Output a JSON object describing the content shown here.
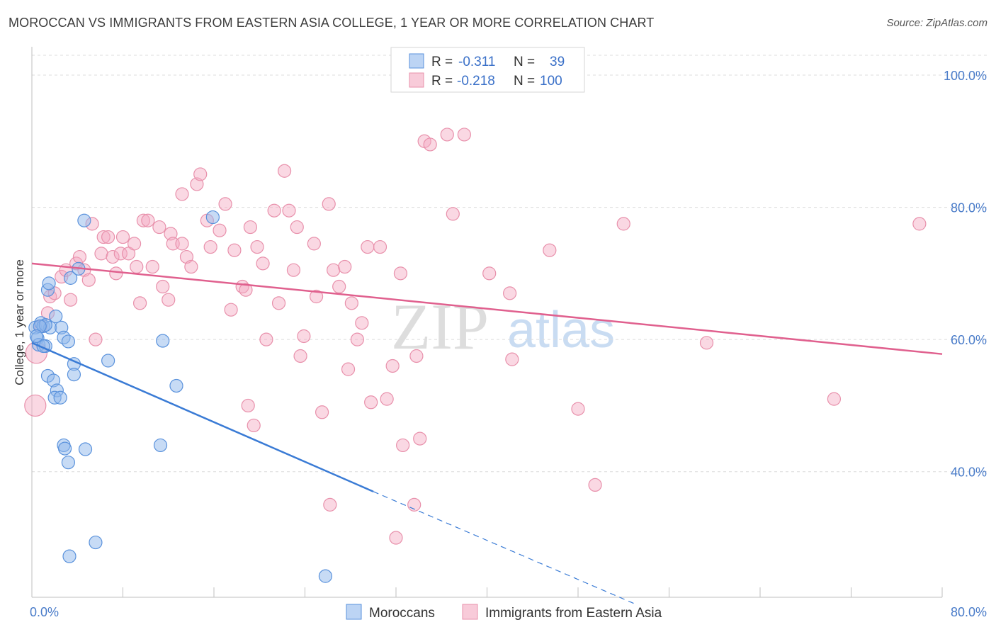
{
  "title": "MOROCCAN VS IMMIGRANTS FROM EASTERN ASIA COLLEGE, 1 YEAR OR MORE CORRELATION CHART",
  "source": "Source: ZipAtlas.com",
  "watermark": {
    "zip": "ZIP",
    "atlas": "atlas"
  },
  "legend_top": [
    {
      "r_label": "R =",
      "r_value": "-0.311",
      "n_label": "N =",
      "n_value": "39",
      "color": "#8fb8ec"
    },
    {
      "r_label": "R =",
      "r_value": "-0.218",
      "n_label": "N =",
      "n_value": "100",
      "color": "#f3a8c0"
    }
  ],
  "legend_bottom": [
    {
      "label": "Moroccans",
      "color": "#8fb8ec"
    },
    {
      "label": "Immigrants from Eastern Asia",
      "color": "#f3a8c0"
    }
  ],
  "chart_data": {
    "type": "scatter",
    "title": "MOROCCAN VS IMMIGRANTS FROM EASTERN ASIA COLLEGE, 1 YEAR OR MORE CORRELATION CHART",
    "xlabel": "",
    "ylabel": "College, 1 year or more",
    "xlim": [
      0,
      80
    ],
    "ylim": [
      21,
      103
    ],
    "x_ticks": [
      "0.0%",
      "80.0%"
    ],
    "y_ticks": [
      {
        "value": 100,
        "label": "100.0%"
      },
      {
        "value": 80,
        "label": "80.0%"
      },
      {
        "value": 60,
        "label": "60.0%"
      },
      {
        "value": 40,
        "label": "40.0%"
      }
    ],
    "grid": true,
    "legend_position": "top-center",
    "series": [
      {
        "name": "Moroccans",
        "color": "#8fb8ec",
        "stroke": "#5a92dc",
        "trend": {
          "x0": 0,
          "y0": 59.5,
          "x1": 30,
          "y1": 37.0,
          "dash_to_x": 53,
          "dash_to_y": 20.0,
          "color": "#3a7bd5"
        },
        "points": [
          {
            "x": 0.3,
            "y": 61.8
          },
          {
            "x": 0.5,
            "y": 60.2
          },
          {
            "x": 0.6,
            "y": 59.2
          },
          {
            "x": 0.8,
            "y": 62.5
          },
          {
            "x": 1.0,
            "y": 62.0
          },
          {
            "x": 1.2,
            "y": 59.0
          },
          {
            "x": 1.4,
            "y": 67.5
          },
          {
            "x": 1.5,
            "y": 68.5
          },
          {
            "x": 1.6,
            "y": 61.8
          },
          {
            "x": 1.4,
            "y": 54.5
          },
          {
            "x": 1.9,
            "y": 53.8
          },
          {
            "x": 2.1,
            "y": 63.5
          },
          {
            "x": 2.2,
            "y": 52.3
          },
          {
            "x": 2.0,
            "y": 51.2
          },
          {
            "x": 2.5,
            "y": 51.2
          },
          {
            "x": 2.6,
            "y": 61.8
          },
          {
            "x": 2.8,
            "y": 60.3
          },
          {
            "x": 3.2,
            "y": 59.7
          },
          {
            "x": 3.4,
            "y": 69.3
          },
          {
            "x": 3.7,
            "y": 56.3
          },
          {
            "x": 3.7,
            "y": 54.7
          },
          {
            "x": 4.1,
            "y": 70.7
          },
          {
            "x": 4.6,
            "y": 78.0
          },
          {
            "x": 2.8,
            "y": 44.0
          },
          {
            "x": 2.9,
            "y": 43.5
          },
          {
            "x": 4.7,
            "y": 43.4
          },
          {
            "x": 3.2,
            "y": 41.4
          },
          {
            "x": 6.7,
            "y": 56.8
          },
          {
            "x": 11.5,
            "y": 59.8
          },
          {
            "x": 11.3,
            "y": 44.0
          },
          {
            "x": 12.7,
            "y": 53.0
          },
          {
            "x": 15.9,
            "y": 78.5
          },
          {
            "x": 3.3,
            "y": 27.2
          },
          {
            "x": 5.6,
            "y": 29.3
          },
          {
            "x": 25.8,
            "y": 24.2
          },
          {
            "x": 1.2,
            "y": 62.2
          },
          {
            "x": 0.7,
            "y": 62.0
          },
          {
            "x": 1.0,
            "y": 59.0
          },
          {
            "x": 0.4,
            "y": 60.5
          }
        ]
      },
      {
        "name": "Immigrants from Eastern Asia",
        "color": "#f3a8c0",
        "stroke": "#e890ab",
        "trend": {
          "x0": 0,
          "y0": 71.5,
          "x1": 80,
          "y1": 57.8,
          "color": "#e0608e"
        },
        "points": [
          {
            "x": 0.4,
            "y": 58.0
          },
          {
            "x": 0.3,
            "y": 50.0
          },
          {
            "x": 0.8,
            "y": 62.0
          },
          {
            "x": 1.4,
            "y": 64.0
          },
          {
            "x": 1.6,
            "y": 66.5
          },
          {
            "x": 2.0,
            "y": 67.0
          },
          {
            "x": 2.6,
            "y": 69.5
          },
          {
            "x": 3.0,
            "y": 70.5
          },
          {
            "x": 3.4,
            "y": 66.0
          },
          {
            "x": 3.9,
            "y": 71.5
          },
          {
            "x": 4.2,
            "y": 72.5
          },
          {
            "x": 4.6,
            "y": 70.5
          },
          {
            "x": 5.0,
            "y": 69.0
          },
          {
            "x": 5.3,
            "y": 77.5
          },
          {
            "x": 5.6,
            "y": 60.0
          },
          {
            "x": 6.1,
            "y": 73.0
          },
          {
            "x": 6.3,
            "y": 75.5
          },
          {
            "x": 6.7,
            "y": 75.5
          },
          {
            "x": 7.1,
            "y": 72.5
          },
          {
            "x": 7.4,
            "y": 70.0
          },
          {
            "x": 7.8,
            "y": 73.0
          },
          {
            "x": 8.0,
            "y": 75.5
          },
          {
            "x": 8.5,
            "y": 73.0
          },
          {
            "x": 9.0,
            "y": 74.5
          },
          {
            "x": 9.5,
            "y": 65.5
          },
          {
            "x": 9.8,
            "y": 78.0
          },
          {
            "x": 10.2,
            "y": 78.0
          },
          {
            "x": 10.6,
            "y": 71.0
          },
          {
            "x": 11.2,
            "y": 77.0
          },
          {
            "x": 11.5,
            "y": 68.0
          },
          {
            "x": 12.2,
            "y": 76.0
          },
          {
            "x": 12.4,
            "y": 74.5
          },
          {
            "x": 13.2,
            "y": 74.5
          },
          {
            "x": 13.6,
            "y": 72.5
          },
          {
            "x": 14.0,
            "y": 71.0
          },
          {
            "x": 13.2,
            "y": 82.0
          },
          {
            "x": 14.5,
            "y": 83.5
          },
          {
            "x": 14.8,
            "y": 85.0
          },
          {
            "x": 15.4,
            "y": 78.0
          },
          {
            "x": 15.7,
            "y": 74.0
          },
          {
            "x": 16.5,
            "y": 76.5
          },
          {
            "x": 17.0,
            "y": 80.5
          },
          {
            "x": 17.5,
            "y": 64.5
          },
          {
            "x": 17.8,
            "y": 73.5
          },
          {
            "x": 18.5,
            "y": 68.0
          },
          {
            "x": 18.8,
            "y": 67.5
          },
          {
            "x": 19.2,
            "y": 77.0
          },
          {
            "x": 19.8,
            "y": 74.0
          },
          {
            "x": 20.3,
            "y": 71.5
          },
          {
            "x": 20.6,
            "y": 60.0
          },
          {
            "x": 21.3,
            "y": 79.5
          },
          {
            "x": 21.7,
            "y": 65.5
          },
          {
            "x": 22.2,
            "y": 85.5
          },
          {
            "x": 22.6,
            "y": 79.5
          },
          {
            "x": 23.0,
            "y": 70.5
          },
          {
            "x": 23.3,
            "y": 77.0
          },
          {
            "x": 23.6,
            "y": 57.5
          },
          {
            "x": 23.9,
            "y": 60.5
          },
          {
            "x": 24.8,
            "y": 74.5
          },
          {
            "x": 25.0,
            "y": 66.5
          },
          {
            "x": 26.1,
            "y": 80.5
          },
          {
            "x": 26.5,
            "y": 70.5
          },
          {
            "x": 27.0,
            "y": 68.0
          },
          {
            "x": 27.5,
            "y": 71.0
          },
          {
            "x": 27.8,
            "y": 55.5
          },
          {
            "x": 28.1,
            "y": 65.5
          },
          {
            "x": 28.6,
            "y": 60.0
          },
          {
            "x": 29.0,
            "y": 62.5
          },
          {
            "x": 29.5,
            "y": 74.0
          },
          {
            "x": 29.8,
            "y": 50.5
          },
          {
            "x": 30.6,
            "y": 74.0
          },
          {
            "x": 31.2,
            "y": 51.0
          },
          {
            "x": 31.7,
            "y": 56.0
          },
          {
            "x": 32.4,
            "y": 70.0
          },
          {
            "x": 32.6,
            "y": 44.0
          },
          {
            "x": 33.8,
            "y": 57.5
          },
          {
            "x": 34.1,
            "y": 45.0
          },
          {
            "x": 34.5,
            "y": 90.0
          },
          {
            "x": 35.0,
            "y": 89.5
          },
          {
            "x": 36.5,
            "y": 91.0
          },
          {
            "x": 37.0,
            "y": 79.0
          },
          {
            "x": 38.0,
            "y": 91.0
          },
          {
            "x": 40.2,
            "y": 70.0
          },
          {
            "x": 42.0,
            "y": 67.0
          },
          {
            "x": 42.2,
            "y": 57.0
          },
          {
            "x": 45.5,
            "y": 73.5
          },
          {
            "x": 48.0,
            "y": 49.5
          },
          {
            "x": 49.5,
            "y": 38.0
          },
          {
            "x": 52.0,
            "y": 77.5
          },
          {
            "x": 59.3,
            "y": 59.5
          },
          {
            "x": 70.5,
            "y": 51.0
          },
          {
            "x": 78.0,
            "y": 77.5
          },
          {
            "x": 19.5,
            "y": 47.0
          },
          {
            "x": 19.0,
            "y": 50.0
          },
          {
            "x": 25.5,
            "y": 49.0
          },
          {
            "x": 26.2,
            "y": 35.0
          },
          {
            "x": 32.0,
            "y": 30.0
          },
          {
            "x": 33.6,
            "y": 35.0
          },
          {
            "x": 9.2,
            "y": 71.0
          },
          {
            "x": 12.0,
            "y": 66.0
          }
        ]
      }
    ]
  }
}
